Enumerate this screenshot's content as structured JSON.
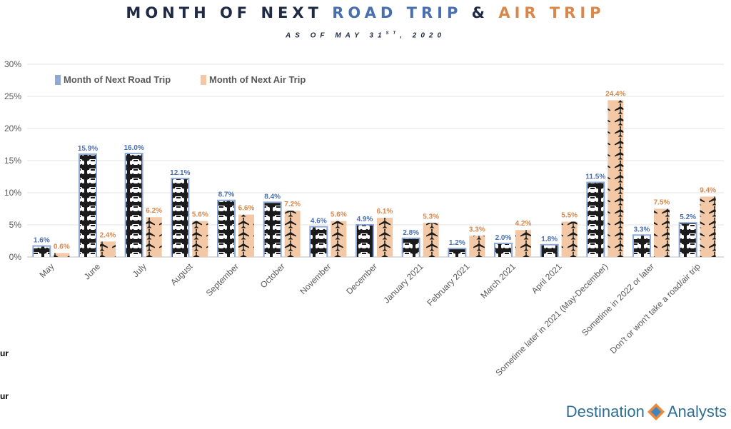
{
  "title": {
    "part1": "MONTH OF NEXT ",
    "part2": "ROAD TRIP",
    "part3": " & ",
    "part4": "AIR TRIP"
  },
  "subtitle": {
    "main": "AS OF MAY 31",
    "sup": "ST",
    "end": ", 2020"
  },
  "colors": {
    "road": "#8fa9d6",
    "air": "#f2c8a6",
    "road_label": "#4a6fb0",
    "air_label": "#d9874a",
    "title_dark": "#1f2a44",
    "bar_fill": "#1b1b1b"
  },
  "icons": {
    "road": "car-icon",
    "air": "airplane-icon"
  },
  "left_fragments": [
    "ur",
    "ur"
  ],
  "logo": {
    "word1": "Destination",
    "word2": "Analysts"
  },
  "chart_data": {
    "type": "bar",
    "categories": [
      "May",
      "June",
      "July",
      "August",
      "September",
      "October",
      "November",
      "December",
      "January 2021",
      "February 2021",
      "March 2021",
      "April 2021",
      "Sometime later in 2021 (May-December)",
      "Sometime in 2022 or later",
      "Don't or won't take a road/air trip"
    ],
    "series": [
      {
        "name": "Month of Next Road Trip",
        "values": [
          1.6,
          15.9,
          16.0,
          12.1,
          8.7,
          8.4,
          4.6,
          4.9,
          2.8,
          1.2,
          2.0,
          1.8,
          11.5,
          3.3,
          5.2
        ],
        "labels": [
          "1.6%",
          "15.9%",
          "16.0%",
          "12.1%",
          "8.7%",
          "8.4%",
          "4.6%",
          "4.9%",
          "2.8%",
          "1.2%",
          "2.0%",
          "1.8%",
          "11.5%",
          "3.3%",
          "5.2%"
        ]
      },
      {
        "name": "Month of Next Air Trip",
        "values": [
          0.6,
          2.4,
          6.2,
          5.6,
          6.6,
          7.2,
          5.6,
          6.1,
          5.3,
          3.3,
          4.2,
          5.5,
          24.4,
          7.5,
          9.4
        ],
        "labels": [
          "0.6%",
          "2.4%",
          "6.2%",
          "5.6%",
          "6.6%",
          "7.2%",
          "5.6%",
          "6.1%",
          "5.3%",
          "3.3%",
          "4.2%",
          "5.5%",
          "24.4%",
          "7.5%",
          "9.4%"
        ]
      }
    ],
    "yticks": [
      "0%",
      "5%",
      "10%",
      "15%",
      "20%",
      "25%",
      "30%"
    ],
    "ylim": [
      0,
      30
    ],
    "grid": true,
    "legend": "top-left"
  }
}
